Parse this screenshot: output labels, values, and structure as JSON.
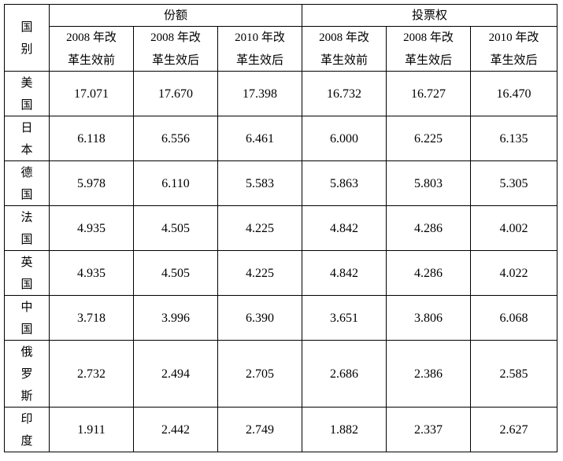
{
  "table": {
    "country_header": [
      "国",
      "别"
    ],
    "group_headers": [
      "份额",
      "投票权"
    ],
    "sub_headers": [
      [
        "2008 年改",
        "革生效前"
      ],
      [
        "2008 年改",
        "革生效后"
      ],
      [
        "2010 年改",
        "革生效后"
      ],
      [
        "2008 年改",
        "革生效前"
      ],
      [
        "2008 年改",
        "革生效后"
      ],
      [
        "2010 年改",
        "革生效后"
      ]
    ],
    "rows": [
      {
        "country": [
          "美",
          "国"
        ],
        "values": [
          "17.071",
          "17.670",
          "17.398",
          "16.732",
          "16.727",
          "16.470"
        ]
      },
      {
        "country": [
          "日",
          "本"
        ],
        "values": [
          "6.118",
          "6.556",
          "6.461",
          "6.000",
          "6.225",
          "6.135"
        ]
      },
      {
        "country": [
          "德",
          "国"
        ],
        "values": [
          "5.978",
          "6.110",
          "5.583",
          "5.863",
          "5.803",
          "5.305"
        ]
      },
      {
        "country": [
          "法",
          "国"
        ],
        "values": [
          "4.935",
          "4.505",
          "4.225",
          "4.842",
          "4.286",
          "4.002"
        ]
      },
      {
        "country": [
          "英",
          "国"
        ],
        "values": [
          "4.935",
          "4.505",
          "4.225",
          "4.842",
          "4.286",
          "4.022"
        ]
      },
      {
        "country": [
          "中",
          "国"
        ],
        "values": [
          "3.718",
          "3.996",
          "6.390",
          "3.651",
          "3.806",
          "6.068"
        ]
      },
      {
        "country": [
          "俄",
          "罗",
          "斯"
        ],
        "values": [
          "2.732",
          "2.494",
          "2.705",
          "2.686",
          "2.386",
          "2.585"
        ]
      },
      {
        "country": [
          "印",
          "度"
        ],
        "values": [
          "1.911",
          "2.442",
          "2.749",
          "1.882",
          "2.337",
          "2.627"
        ]
      }
    ]
  }
}
